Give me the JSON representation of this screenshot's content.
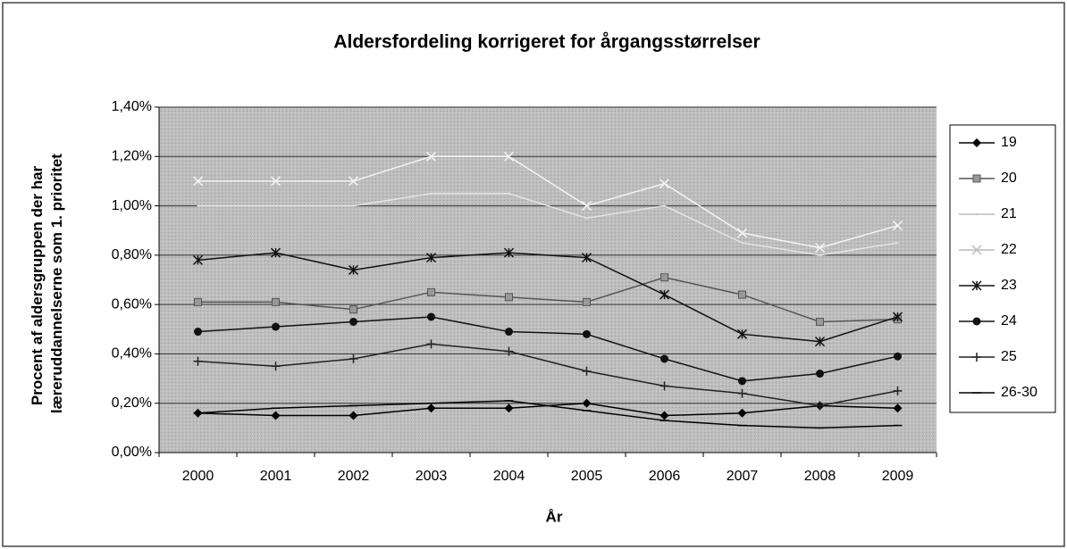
{
  "chart_data": {
    "type": "line",
    "title": "Aldersfordeling korrigeret for årgangsstørrelser",
    "y_label": "Procent af aldersgruppen der har læreruddannelserne som 1. prioritet",
    "x_label": "År",
    "categories": [
      "2000",
      "2001",
      "2002",
      "2003",
      "2004",
      "2005",
      "2006",
      "2007",
      "2008",
      "2009"
    ],
    "ylim": [
      0,
      1.4
    ],
    "yticks": [
      {
        "value": 0,
        "label": "0,00%"
      },
      {
        "value": 0.2,
        "label": "0,20%"
      },
      {
        "value": 0.4,
        "label": "0,40%"
      },
      {
        "value": 0.6,
        "label": "0,60%"
      },
      {
        "value": 0.8,
        "label": "0,80%"
      },
      {
        "value": 1.0,
        "label": "1,00%"
      },
      {
        "value": 1.2,
        "label": "1,20%"
      },
      {
        "value": 1.4,
        "label": "1,40%"
      }
    ],
    "grid": true,
    "legend": "right",
    "series": [
      {
        "name": "19",
        "color": "#000000",
        "marker": "diamond",
        "values": [
          0.16,
          0.15,
          0.15,
          0.18,
          0.18,
          0.2,
          0.15,
          0.16,
          0.19,
          0.18
        ]
      },
      {
        "name": "20",
        "color": "#555555",
        "marker": "square",
        "values": [
          0.61,
          0.61,
          0.58,
          0.65,
          0.63,
          0.61,
          0.71,
          0.64,
          0.53,
          0.54
        ]
      },
      {
        "name": "21",
        "color": "#e4e4e4",
        "marker": "none",
        "values": [
          1.0,
          1.0,
          1.0,
          1.05,
          1.05,
          0.95,
          1.0,
          0.85,
          0.8,
          0.85
        ]
      },
      {
        "name": "22",
        "color": "#f4f4f4",
        "marker": "cross",
        "values": [
          1.1,
          1.1,
          1.1,
          1.2,
          1.2,
          1.0,
          1.09,
          0.89,
          0.83,
          0.92
        ]
      },
      {
        "name": "23",
        "color": "#111111",
        "marker": "star",
        "values": [
          0.78,
          0.81,
          0.74,
          0.79,
          0.81,
          0.79,
          0.64,
          0.48,
          0.45,
          0.55
        ]
      },
      {
        "name": "24",
        "color": "#111111",
        "marker": "circle",
        "values": [
          0.49,
          0.51,
          0.53,
          0.55,
          0.49,
          0.48,
          0.38,
          0.29,
          0.32,
          0.39
        ]
      },
      {
        "name": "25",
        "color": "#222222",
        "marker": "plus",
        "values": [
          0.37,
          0.35,
          0.38,
          0.44,
          0.41,
          0.33,
          0.27,
          0.24,
          0.19,
          0.25
        ]
      },
      {
        "name": "26-30",
        "color": "#000000",
        "marker": "dash",
        "values": [
          0.16,
          0.18,
          0.19,
          0.2,
          0.21,
          0.17,
          0.13,
          0.11,
          0.1,
          0.11
        ]
      }
    ]
  }
}
